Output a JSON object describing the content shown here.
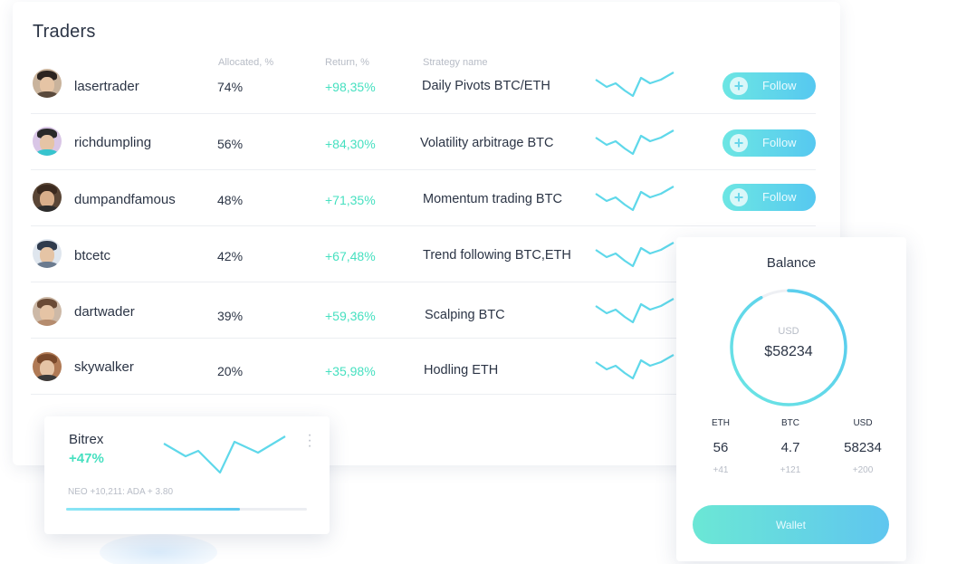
{
  "traders": {
    "title": "Traders",
    "columns": {
      "allocated": "Allocated, %",
      "return": "Return, %",
      "strategy": "Strategy name"
    },
    "follow_label": "Follow",
    "rows": [
      {
        "name": "lasertrader",
        "allocated": "74%",
        "return": "+98,35%",
        "strategy": "Daily Pivots BTC/ETH",
        "follow": true,
        "avatar": "avatar-photo"
      },
      {
        "name": "richdumpling",
        "allocated": "56%",
        "return": "+84,30%",
        "strategy": "Volatility arbitrage BTC",
        "follow": true,
        "avatar": "avatar-photo"
      },
      {
        "name": "dumpandfamous",
        "allocated": "48%",
        "return": "+71,35%",
        "strategy": "Momentum trading BTC",
        "follow": true,
        "avatar": "avatar-photo"
      },
      {
        "name": "btcetc",
        "allocated": "42%",
        "return": "+67,48%",
        "strategy": "Trend following BTC,ETH",
        "follow": false,
        "avatar": "avatar-photo"
      },
      {
        "name": "dartwader",
        "allocated": "39%",
        "return": "+59,36%",
        "strategy": "Scalping BTC",
        "follow": false,
        "avatar": "avatar-photo"
      },
      {
        "name": "skywalker",
        "allocated": "20%",
        "return": "+35,98%",
        "strategy": "Hodling ETH",
        "follow": false,
        "avatar": "avatar-photo"
      }
    ]
  },
  "bitrex": {
    "name": "Bitrex",
    "change": "+47%",
    "ticker": "NEO +10,211: ADA + 3.80",
    "progress_fraction": 0.72,
    "menu_icon": "kebab-menu-icon"
  },
  "balance": {
    "title": "Balance",
    "currency": "USD",
    "total": "$58234",
    "gauge_fraction": 0.92,
    "assets": [
      {
        "code": "ETH",
        "amount": "56",
        "change": "+41"
      },
      {
        "code": "BTC",
        "amount": "4.7",
        "change": "+121"
      },
      {
        "code": "USD",
        "amount": "58234",
        "change": "+200"
      }
    ],
    "wallet_label": "Wallet"
  },
  "colors": {
    "accent_green": "#46e0c0",
    "accent_blue": "#56c8f0",
    "sparkline": "#5fd8ea",
    "text_dark": "#2b3445",
    "text_muted": "#b7bcc6"
  }
}
